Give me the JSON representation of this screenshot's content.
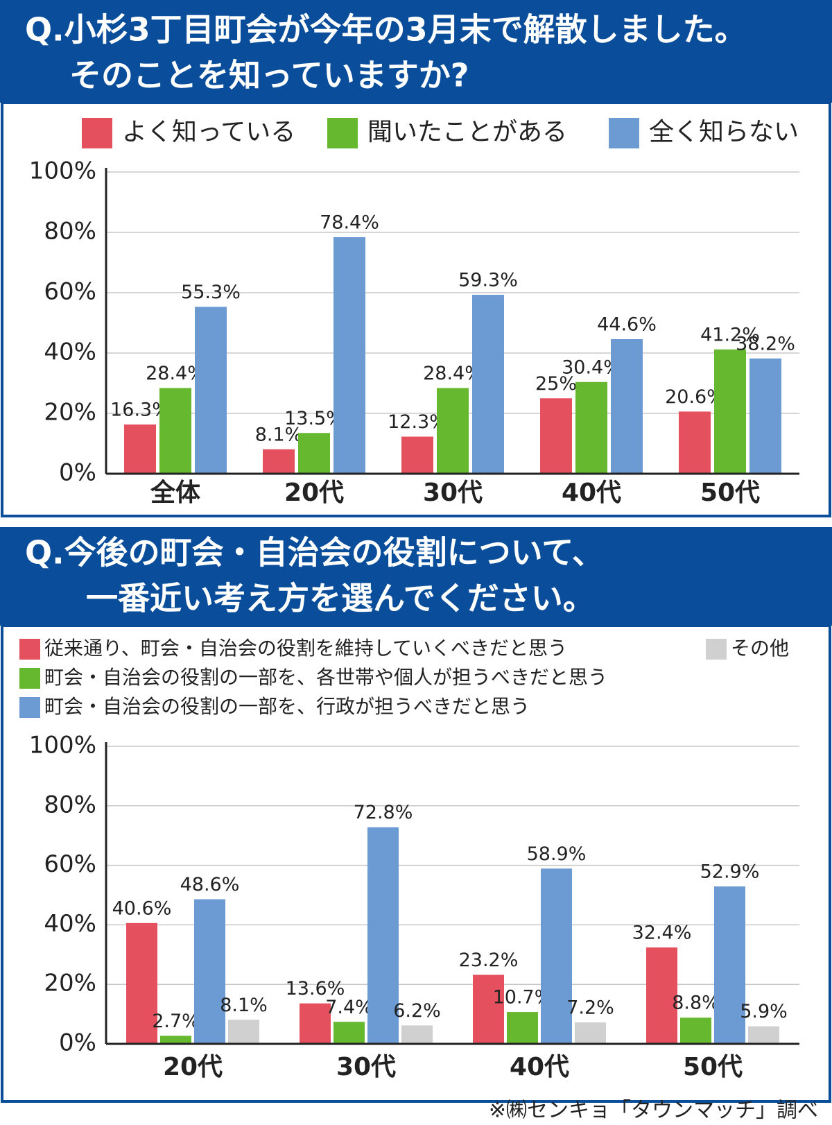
{
  "chart_data": [
    {
      "type": "bar",
      "title": [
        "Q.小杉3丁目町会が今年の3月末で解散しました。",
        "そのことを知っていますか?"
      ],
      "categories": [
        "全体",
        "20代",
        "30代",
        "40代",
        "50代"
      ],
      "series": [
        {
          "name": "よく知っている",
          "color": "#e5505f",
          "values": [
            16.3,
            8.1,
            12.3,
            25,
            20.6
          ],
          "value_labels": [
            "16.3%",
            "8.1%",
            "12.3%",
            "25%",
            "20.6%"
          ]
        },
        {
          "name": "聞いたことがある",
          "color": "#66b82e",
          "values": [
            28.4,
            13.5,
            28.4,
            30.4,
            41.2
          ],
          "value_labels": [
            "28.4%",
            "13.5%",
            "28.4%",
            "30.4%",
            "41.2%"
          ]
        },
        {
          "name": "全く知らない",
          "color": "#6b9bd2",
          "values": [
            55.3,
            78.4,
            59.3,
            44.6,
            38.2
          ],
          "value_labels": [
            "55.3%",
            "78.4%",
            "59.3%",
            "44.6%",
            "38.2%"
          ]
        }
      ],
      "ylim": [
        0,
        100
      ],
      "yticks": [
        {
          "value": 0,
          "label": "0%"
        },
        {
          "value": 20,
          "label": "20%"
        },
        {
          "value": 40,
          "label": "40%"
        },
        {
          "value": 60,
          "label": "60%"
        },
        {
          "value": 80,
          "label": "80%"
        },
        {
          "value": 100,
          "label": "100%"
        }
      ],
      "grid": true
    },
    {
      "type": "bar",
      "title": [
        "Q.今後の町会・自治会の役割について、",
        "一番近い考え方を選んでください。"
      ],
      "categories": [
        "20代",
        "30代",
        "40代",
        "50代"
      ],
      "series": [
        {
          "name": "従来通り、町会・自治会の役割を維持していくべきだと思う",
          "color": "#e5505f",
          "values": [
            40.6,
            13.6,
            23.2,
            32.4
          ],
          "value_labels": [
            "40.6%",
            "13.6%",
            "23.2%",
            "32.4%"
          ]
        },
        {
          "name": "町会・自治会の役割の一部を、各世帯や個人が担うべきだと思う",
          "color": "#66b82e",
          "values": [
            2.7,
            7.4,
            10.7,
            8.8
          ],
          "value_labels": [
            "2.7%",
            "7.4%",
            "10.7%",
            "8.8%"
          ]
        },
        {
          "name": "町会・自治会の役割の一部を、行政が担うべきだと思う",
          "color": "#6b9bd2",
          "values": [
            48.6,
            72.8,
            58.9,
            52.9
          ],
          "value_labels": [
            "48.6%",
            "72.8%",
            "58.9%",
            "52.9%"
          ]
        },
        {
          "name": "その他",
          "color": "#d0d0d0",
          "values": [
            8.1,
            6.2,
            7.2,
            5.9
          ],
          "value_labels": [
            "8.1%",
            "6.2%",
            "7.2%",
            "5.9%"
          ]
        }
      ],
      "ylim": [
        0,
        100
      ],
      "yticks": [
        {
          "value": 0,
          "label": "0%"
        },
        {
          "value": 20,
          "label": "20%"
        },
        {
          "value": 40,
          "label": "40%"
        },
        {
          "value": 60,
          "label": "60%"
        },
        {
          "value": 80,
          "label": "80%"
        },
        {
          "value": 100,
          "label": "100%"
        }
      ],
      "grid": true
    }
  ],
  "source": "※㈱センキョ「タウンマッチ」調べ"
}
